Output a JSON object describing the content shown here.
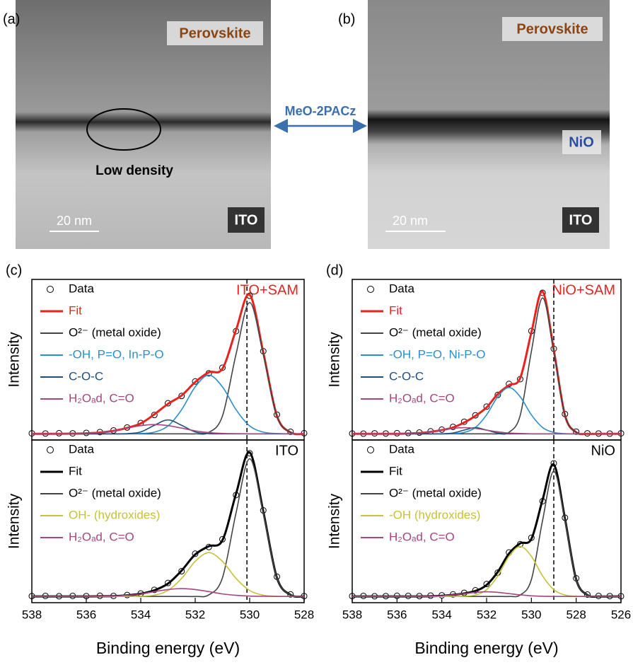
{
  "images": {
    "a": {
      "label": "(a)",
      "top_layer": "Perovskite",
      "note": "Low density",
      "scale_bar": "20 nm",
      "bottom_layer": "ITO"
    },
    "b": {
      "label": "(b)",
      "top_layer": "Perovskite",
      "middle_layer": "NiO",
      "scale_bar": "20 nm",
      "bottom_layer": "ITO"
    },
    "arrow_label": "MeO-2PACz"
  },
  "chart_data": [
    {
      "type": "line",
      "label": "(c)",
      "title": "ITO+SAM",
      "title_color": "#e8231f",
      "ylabel": "Intensity",
      "xlim": [
        538,
        528
      ],
      "ylim": [
        -4,
        100
      ],
      "vline": 530.1,
      "x": [
        538,
        537.5,
        537,
        536.5,
        536,
        535.5,
        535,
        534.5,
        534,
        533.5,
        533,
        532.5,
        532,
        531.5,
        531,
        530.5,
        530,
        529.5,
        529,
        528.5,
        528
      ],
      "series": [
        {
          "name": "Data",
          "color": "#000000",
          "marker": "circle",
          "values": [
            0.3,
            0.2,
            0.4,
            0.3,
            0.6,
            1.1,
            2.2,
            4.1,
            7.0,
            12.2,
            19.8,
            24.5,
            33.9,
            39.2,
            42.8,
            66.5,
            89.4,
            53.5,
            12.4,
            1.3,
            0.4
          ]
        },
        {
          "name": "Fit",
          "color": "#e8231f",
          "width": 3,
          "values": [
            0,
            0,
            0,
            0.1,
            0.3,
            0.8,
            1.9,
            3.8,
            6.7,
            12.6,
            19.4,
            24.8,
            33.5,
            39.8,
            42.2,
            67.3,
            90.1,
            52.7,
            11.7,
            0.9,
            0
          ]
        },
        {
          "name": "O²⁻ (metal oxide)",
          "color": "#444444",
          "values": [
            0,
            0,
            0,
            0,
            0,
            0,
            0,
            0,
            0,
            0,
            0,
            0,
            0,
            0.9,
            11.5,
            51.6,
            85,
            51.6,
            11.5,
            0.9,
            0
          ]
        },
        {
          "name": "-OH, P=O, In-P-O",
          "color": "#2a8fc9",
          "values": [
            0,
            0,
            0,
            0,
            0,
            0,
            0,
            0,
            0.2,
            1.1,
            5.1,
            15.6,
            30.4,
            38,
            30.4,
            15.6,
            5.1,
            1.1,
            0.2,
            0,
            0
          ]
        },
        {
          "name": "C-O-C",
          "color": "#1f4e79",
          "values": [
            0,
            0,
            0,
            0,
            0,
            0,
            0,
            0.1,
            1.2,
            5.5,
            9,
            5.5,
            1.2,
            0.1,
            0,
            0,
            0,
            0,
            0,
            0,
            0
          ]
        },
        {
          "name": "H₂Oₐd, C=O",
          "color": "#a3477f",
          "values": [
            0,
            0,
            0,
            0.1,
            0.3,
            0.8,
            1.9,
            3.7,
            5.3,
            6,
            5.3,
            3.7,
            1.9,
            0.8,
            0.3,
            0.1,
            0,
            0,
            0,
            0,
            0
          ]
        }
      ]
    },
    {
      "type": "line",
      "title": "ITO",
      "title_color": "#000000",
      "ylabel": "Intensity",
      "xlabel": "Binding energy (eV)",
      "xlim": [
        538,
        528
      ],
      "ylim": [
        -4,
        100
      ],
      "xticks": [
        538,
        536,
        534,
        532,
        530,
        528
      ],
      "vline": 530.1,
      "x": [
        538,
        537.5,
        537,
        536.5,
        536,
        535.5,
        535,
        534.5,
        534,
        533.5,
        533,
        532.5,
        532,
        531.5,
        531,
        530.5,
        530,
        529.5,
        529,
        528.5,
        528
      ],
      "series": [
        {
          "name": "Data",
          "color": "#000000",
          "marker": "circle",
          "values": [
            0.2,
            0.3,
            0.1,
            0.3,
            0.2,
            0.4,
            0.3,
            0.9,
            1.9,
            4.2,
            8.6,
            16.1,
            27.3,
            31.6,
            36.5,
            64.8,
            91.5,
            55.0,
            12.6,
            1.3,
            0.2
          ]
        },
        {
          "name": "Fit",
          "color": "#000000",
          "width": 3,
          "values": [
            0,
            0,
            0,
            0,
            0,
            0.1,
            0.2,
            0.7,
            1.7,
            3.9,
            8.2,
            16.5,
            26.8,
            32.1,
            35.9,
            65.6,
            92,
            54.3,
            12,
            1,
            0
          ]
        },
        {
          "name": "O²⁻ (metal oxide)",
          "color": "#444444",
          "values": [
            0,
            0,
            0,
            0,
            0,
            0,
            0,
            0,
            0,
            0,
            0,
            0,
            0,
            1.0,
            11.9,
            53.4,
            88,
            53.4,
            11.9,
            1.0,
            0
          ]
        },
        {
          "name": "OH- (hydroxides)",
          "color": "#c6c13a",
          "values": [
            0,
            0,
            0,
            0,
            0,
            0,
            0,
            0,
            0.1,
            0.8,
            3.8,
            11.5,
            22.4,
            28,
            22.4,
            11.5,
            3.8,
            0.8,
            0.1,
            0,
            0
          ]
        },
        {
          "name": "H₂Oₐd, C=O",
          "color": "#a3477f",
          "values": [
            0,
            0,
            0,
            0,
            0,
            0.1,
            0.2,
            0.7,
            1.6,
            3.1,
            4.4,
            5,
            4.4,
            3.1,
            1.6,
            0.7,
            0.2,
            0.1,
            0,
            0,
            0
          ]
        }
      ]
    },
    {
      "type": "line",
      "label": "(d)",
      "title": "NiO+SAM",
      "title_color": "#e8231f",
      "ylabel": "Intensity",
      "xlim": [
        538,
        526
      ],
      "ylim": [
        -4,
        100
      ],
      "vline": 529.0,
      "x": [
        538,
        537.5,
        537,
        536.5,
        536,
        535.5,
        535,
        534.5,
        534,
        533.5,
        533,
        532.5,
        532,
        531.5,
        531,
        530.5,
        530,
        529.5,
        529,
        528.5,
        528,
        527.5,
        527,
        526.5,
        526
      ],
      "series": [
        {
          "name": "Data",
          "color": "#000000",
          "marker": "circle",
          "values": [
            0.2,
            0.1,
            0.3,
            0.2,
            0.4,
            0.5,
            0.8,
            1.6,
            2.7,
            4.5,
            7.8,
            12.0,
            17.6,
            25.2,
            32.3,
            35.4,
            66.6,
            91.3,
            55.1,
            12.8,
            1.4,
            0.3,
            0.2,
            0.1,
            0.3
          ]
        },
        {
          "name": "Fit",
          "color": "#e8231f",
          "width": 3,
          "values": [
            0,
            0,
            0,
            0,
            0,
            0.2,
            0.5,
            1.3,
            2.4,
            4.1,
            7.3,
            11.6,
            17.1,
            25.8,
            31.5,
            36.1,
            65.7,
            92.1,
            54.3,
            12,
            1,
            0,
            0,
            0,
            0
          ]
        },
        {
          "name": "O²⁻ (metal oxide)",
          "color": "#444444",
          "values": [
            0,
            0,
            0,
            0,
            0,
            0,
            0,
            0,
            0,
            0,
            0,
            0,
            0,
            0,
            1.0,
            11.9,
            53.4,
            88,
            53.4,
            11.9,
            1.0,
            0,
            0,
            0,
            0
          ]
        },
        {
          "name": "-OH, P=O, Ni-P-O",
          "color": "#2a8fc9",
          "values": [
            0,
            0,
            0,
            0,
            0,
            0,
            0,
            0,
            0,
            0.1,
            0.9,
            4.1,
            12.3,
            24,
            30,
            24,
            12.3,
            4.1,
            0.9,
            0.1,
            0,
            0,
            0,
            0,
            0
          ]
        },
        {
          "name": "C-O-C",
          "color": "#1f4e79",
          "values": [
            0,
            0,
            0,
            0,
            0,
            0,
            0,
            0,
            0,
            0.5,
            2.4,
            4,
            2.4,
            0.5,
            0,
            0,
            0,
            0,
            0,
            0,
            0,
            0,
            0,
            0,
            0
          ]
        },
        {
          "name": "H₂Oₐd, C=O",
          "color": "#a3477f",
          "values": [
            0,
            0,
            0,
            0,
            0,
            0.2,
            0.5,
            1.3,
            2.4,
            3.5,
            4,
            3.5,
            2.4,
            1.3,
            0.5,
            0.2,
            0,
            0,
            0,
            0,
            0,
            0,
            0,
            0,
            0
          ]
        }
      ]
    },
    {
      "type": "line",
      "title": "NiO",
      "title_color": "#000000",
      "ylabel": "Intensity",
      "xlabel": "Binding energy (eV)",
      "xlim": [
        538,
        526
      ],
      "ylim": [
        -4,
        100
      ],
      "xticks": [
        538,
        536,
        534,
        532,
        530,
        528,
        526
      ],
      "vline": 529.0,
      "x": [
        538,
        537.5,
        537,
        536.5,
        536,
        535.5,
        535,
        534.5,
        534,
        533.5,
        533,
        532.5,
        532,
        531.5,
        531,
        530.5,
        530,
        529.5,
        529,
        528.5,
        528,
        527.5,
        527,
        526.5,
        526
      ],
      "series": [
        {
          "name": "Data",
          "color": "#000000",
          "marker": "circle",
          "values": [
            0.2,
            0.3,
            0.1,
            0.2,
            0.4,
            0.3,
            0.2,
            0.5,
            0.7,
            1.3,
            2.3,
            3.9,
            7.9,
            15.2,
            28.1,
            33.4,
            37.5,
            60.9,
            85.1,
            50.3,
            11.6,
            1.2,
            0.3,
            0.2,
            0.1
          ]
        },
        {
          "name": "Fit",
          "color": "#000000",
          "width": 3,
          "values": [
            0,
            0,
            0,
            0,
            0,
            0,
            0,
            0.1,
            0.4,
            1,
            1.9,
            3.5,
            7.3,
            15.7,
            27.4,
            33.9,
            36.8,
            61.8,
            84.3,
            49.5,
            10.9,
            0.9,
            0,
            0,
            0
          ]
        },
        {
          "name": "O²⁻ (metal oxide)",
          "color": "#444444",
          "values": [
            0,
            0,
            0,
            0,
            0,
            0,
            0,
            0,
            0,
            0,
            0,
            0,
            0,
            0,
            0,
            0.9,
            10.8,
            48.6,
            80,
            48.6,
            10.8,
            0.9,
            0,
            0,
            0
          ]
        },
        {
          "name": "-OH (hydroxides)",
          "color": "#c6c13a",
          "values": [
            0,
            0,
            0,
            0,
            0,
            0,
            0,
            0,
            0,
            0,
            0.1,
            0.9,
            4.3,
            13.1,
            25.6,
            32,
            25.6,
            13.1,
            4.3,
            0.9,
            0.1,
            0,
            0,
            0,
            0
          ]
        },
        {
          "name": "H₂Oₐd, C=O",
          "color": "#a3477f",
          "values": [
            0,
            0,
            0,
            0,
            0,
            0,
            0,
            0.1,
            0.4,
            1,
            1.8,
            2.6,
            3,
            2.6,
            1.8,
            1,
            0.4,
            0.1,
            0,
            0,
            0,
            0,
            0,
            0,
            0
          ]
        }
      ]
    }
  ]
}
